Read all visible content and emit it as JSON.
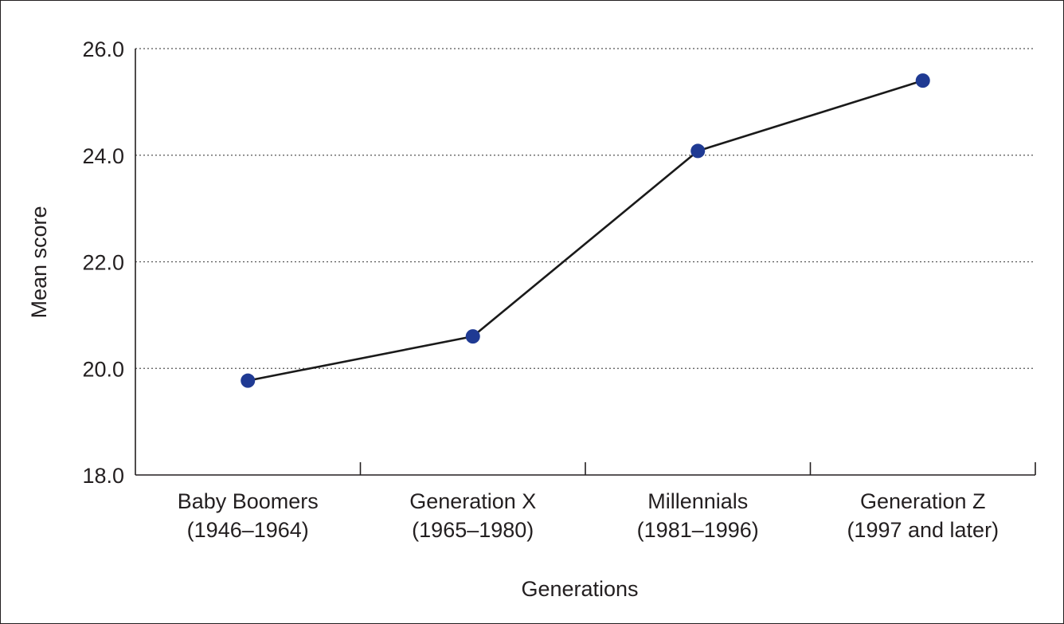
{
  "chart_data": {
    "type": "line",
    "title": "",
    "xlabel": "Generations",
    "ylabel": "Mean score",
    "categories": [
      [
        "Baby Boomers",
        "(1946–1964)"
      ],
      [
        "Generation X",
        "(1965–1980)"
      ],
      [
        "Millennials",
        "(1981–1996)"
      ],
      [
        "Generation Z",
        "(1997 and later)"
      ]
    ],
    "series": [
      {
        "values": [
          19.77,
          20.6,
          24.08,
          25.4
        ]
      }
    ],
    "ylim": [
      18.0,
      26.0
    ],
    "yticks": [
      "18.0",
      "20.0",
      "22.0",
      "24.0",
      "26.0"
    ],
    "grid": "horizontal dotted",
    "colors": {
      "line": "#1a1a1a",
      "marker": "#1f3a93",
      "axis": "#231f20",
      "grid": "#555555"
    }
  }
}
